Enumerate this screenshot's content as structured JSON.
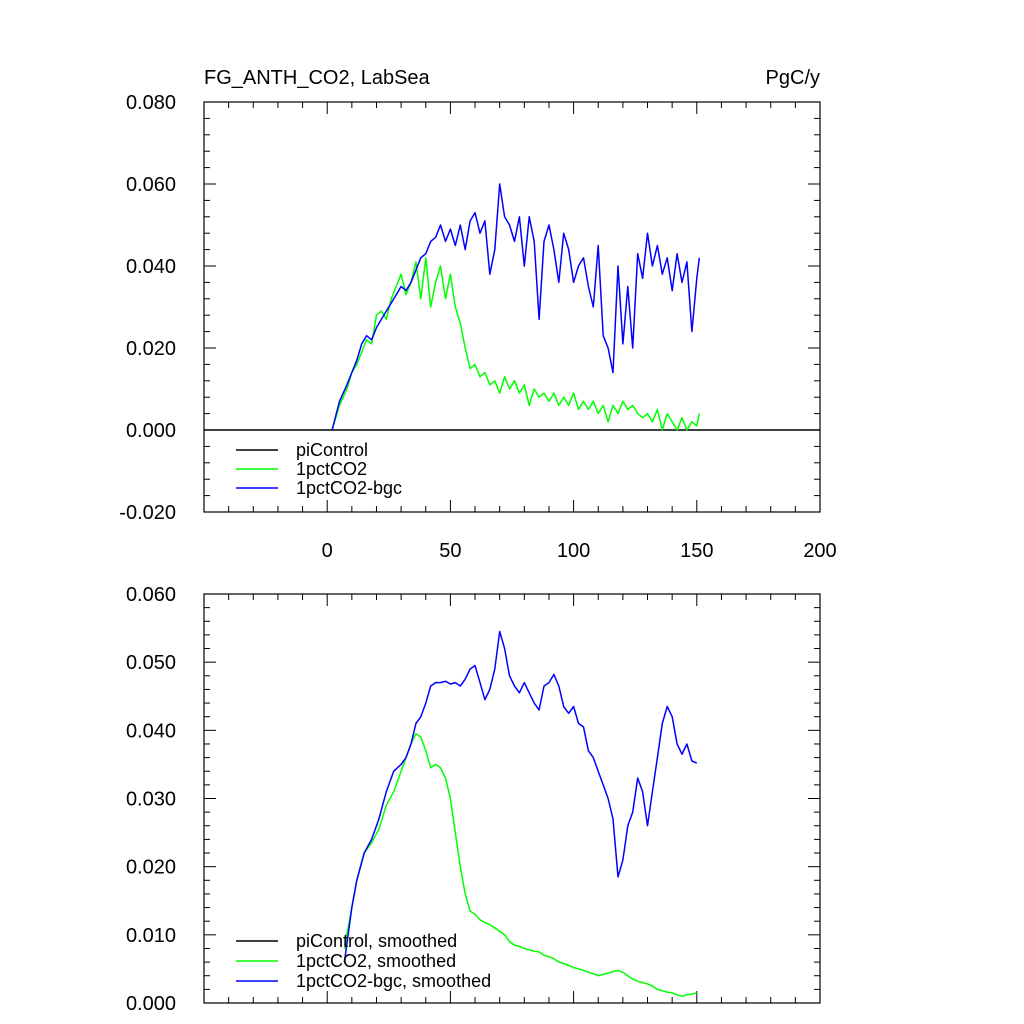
{
  "chart_data": [
    {
      "type": "line",
      "title": "FG_ANTH_CO2, LabSea",
      "units": "PgC/y",
      "xlim": [
        -50,
        200
      ],
      "ylim": [
        -0.02,
        0.08
      ],
      "xticks": [
        0,
        50,
        100,
        150,
        200
      ],
      "xtick_labels": [
        "0",
        "50",
        "100",
        "150",
        "200"
      ],
      "yticks": [
        -0.02,
        0,
        0.02,
        0.04,
        0.06,
        0.08
      ],
      "ytick_labels": [
        "-0.020",
        "0.000",
        "0.020",
        "0.040",
        "0.060",
        "0.080"
      ],
      "legend_position": "bottom-left",
      "series": [
        {
          "name": "piControl",
          "color": "#000000",
          "x": [
            -50,
            200
          ],
          "y": [
            0.0,
            0.0
          ]
        },
        {
          "name": "1pctCO2",
          "color": "#00ff00",
          "x": [
            2,
            5,
            8,
            10,
            12,
            14,
            16,
            18,
            20,
            22,
            24,
            26,
            28,
            30,
            32,
            34,
            36,
            38,
            40,
            42,
            44,
            46,
            48,
            50,
            52,
            54,
            56,
            58,
            60,
            62,
            64,
            66,
            68,
            70,
            72,
            74,
            76,
            78,
            80,
            82,
            84,
            86,
            88,
            90,
            92,
            94,
            96,
            98,
            100,
            102,
            104,
            106,
            108,
            110,
            112,
            114,
            116,
            118,
            120,
            122,
            124,
            126,
            128,
            130,
            132,
            134,
            136,
            138,
            140,
            142,
            144,
            146,
            148,
            150,
            151
          ],
          "y": [
            0.0,
            0.006,
            0.01,
            0.014,
            0.016,
            0.019,
            0.022,
            0.021,
            0.028,
            0.029,
            0.027,
            0.032,
            0.035,
            0.038,
            0.033,
            0.036,
            0.041,
            0.032,
            0.042,
            0.03,
            0.036,
            0.04,
            0.032,
            0.038,
            0.03,
            0.026,
            0.02,
            0.015,
            0.016,
            0.013,
            0.014,
            0.011,
            0.012,
            0.009,
            0.013,
            0.01,
            0.012,
            0.009,
            0.011,
            0.006,
            0.01,
            0.008,
            0.009,
            0.007,
            0.009,
            0.006,
            0.008,
            0.006,
            0.009,
            0.005,
            0.007,
            0.005,
            0.007,
            0.004,
            0.006,
            0.002,
            0.006,
            0.004,
            0.007,
            0.005,
            0.006,
            0.004,
            0.003,
            0.004,
            0.002,
            0.005,
            0.0,
            0.004,
            0.002,
            0.0,
            0.003,
            0.0,
            0.002,
            0.001,
            0.004
          ]
        },
        {
          "name": "1pctCO2-bgc",
          "color": "#0000ff",
          "x": [
            2,
            5,
            8,
            10,
            12,
            14,
            16,
            18,
            20,
            22,
            24,
            26,
            28,
            30,
            32,
            34,
            36,
            38,
            40,
            42,
            44,
            46,
            48,
            50,
            52,
            54,
            56,
            58,
            60,
            62,
            64,
            66,
            68,
            70,
            72,
            74,
            76,
            78,
            80,
            82,
            84,
            86,
            88,
            90,
            92,
            94,
            96,
            98,
            100,
            102,
            104,
            106,
            108,
            110,
            112,
            114,
            116,
            118,
            120,
            122,
            124,
            126,
            128,
            130,
            132,
            134,
            136,
            138,
            140,
            142,
            144,
            146,
            148,
            150,
            151
          ],
          "y": [
            0.0,
            0.007,
            0.011,
            0.014,
            0.017,
            0.021,
            0.023,
            0.022,
            0.025,
            0.027,
            0.029,
            0.031,
            0.033,
            0.035,
            0.034,
            0.036,
            0.039,
            0.042,
            0.043,
            0.046,
            0.047,
            0.05,
            0.046,
            0.049,
            0.045,
            0.05,
            0.044,
            0.051,
            0.053,
            0.048,
            0.051,
            0.038,
            0.044,
            0.06,
            0.052,
            0.05,
            0.046,
            0.052,
            0.04,
            0.052,
            0.046,
            0.027,
            0.046,
            0.05,
            0.044,
            0.036,
            0.048,
            0.044,
            0.036,
            0.04,
            0.042,
            0.035,
            0.03,
            0.045,
            0.023,
            0.02,
            0.014,
            0.04,
            0.021,
            0.035,
            0.02,
            0.043,
            0.037,
            0.048,
            0.04,
            0.045,
            0.038,
            0.042,
            0.034,
            0.043,
            0.036,
            0.041,
            0.024,
            0.037,
            0.042
          ]
        }
      ]
    },
    {
      "type": "line",
      "title": "",
      "xlim": [
        -50,
        200
      ],
      "ylim": [
        0,
        0.06
      ],
      "xticks": [
        0,
        50,
        100,
        150,
        200
      ],
      "yticks": [
        0,
        0.01,
        0.02,
        0.03,
        0.04,
        0.05,
        0.06
      ],
      "ytick_labels": [
        "0.000",
        "0.010",
        "0.020",
        "0.030",
        "0.040",
        "0.050",
        "0.060"
      ],
      "legend_position": "bottom-left",
      "series": [
        {
          "name": "piControl, smoothed",
          "color": "#000000",
          "x": [],
          "y": []
        },
        {
          "name": "1pctCO2, smoothed",
          "color": "#00ff00",
          "x": [
            7,
            10,
            12,
            15,
            18,
            21,
            24,
            27,
            30,
            32,
            34,
            36,
            38,
            40,
            42,
            44,
            46,
            48,
            50,
            52,
            54,
            56,
            58,
            60,
            62,
            64,
            66,
            68,
            70,
            72,
            74,
            76,
            78,
            80,
            82,
            84,
            86,
            88,
            90,
            92,
            94,
            96,
            98,
            100,
            102,
            104,
            106,
            108,
            110,
            112,
            114,
            116,
            118,
            120,
            122,
            124,
            126,
            128,
            130,
            132,
            134,
            136,
            138,
            140,
            142,
            144,
            146,
            148,
            150
          ],
          "y": [
            0.008,
            0.014,
            0.018,
            0.022,
            0.0235,
            0.0255,
            0.029,
            0.031,
            0.034,
            0.036,
            0.038,
            0.0395,
            0.039,
            0.037,
            0.0345,
            0.035,
            0.0345,
            0.033,
            0.03,
            0.025,
            0.02,
            0.016,
            0.0135,
            0.013,
            0.0122,
            0.0118,
            0.0115,
            0.011,
            0.0105,
            0.01,
            0.009,
            0.0085,
            0.0083,
            0.008,
            0.0078,
            0.0076,
            0.0075,
            0.007,
            0.0068,
            0.0065,
            0.006,
            0.0058,
            0.0055,
            0.0052,
            0.005,
            0.0048,
            0.0045,
            0.0043,
            0.004,
            0.0042,
            0.0044,
            0.0046,
            0.0048,
            0.0045,
            0.004,
            0.0035,
            0.0032,
            0.003,
            0.0028,
            0.0025,
            0.002,
            0.0018,
            0.0016,
            0.0015,
            0.0012,
            0.001,
            0.0012,
            0.0013,
            0.0015
          ]
        },
        {
          "name": "1pctCO2-bgc, smoothed",
          "color": "#0000ff",
          "x": [
            7,
            10,
            12,
            15,
            18,
            21,
            24,
            27,
            30,
            32,
            34,
            36,
            38,
            40,
            42,
            44,
            46,
            48,
            50,
            52,
            54,
            56,
            58,
            60,
            62,
            64,
            66,
            68,
            70,
            72,
            74,
            76,
            78,
            80,
            82,
            84,
            86,
            88,
            90,
            92,
            94,
            96,
            98,
            100,
            102,
            104,
            106,
            108,
            110,
            112,
            114,
            116,
            118,
            120,
            122,
            124,
            126,
            128,
            130,
            132,
            134,
            136,
            138,
            140,
            142,
            144,
            146,
            148,
            150
          ],
          "y": [
            0.006,
            0.014,
            0.018,
            0.022,
            0.024,
            0.027,
            0.031,
            0.034,
            0.035,
            0.036,
            0.038,
            0.041,
            0.042,
            0.044,
            0.0465,
            0.047,
            0.047,
            0.0472,
            0.0468,
            0.047,
            0.0465,
            0.0475,
            0.049,
            0.0495,
            0.047,
            0.0445,
            0.046,
            0.049,
            0.0545,
            0.052,
            0.048,
            0.0465,
            0.0455,
            0.047,
            0.0455,
            0.044,
            0.043,
            0.0465,
            0.047,
            0.0482,
            0.0465,
            0.0435,
            0.0425,
            0.0435,
            0.041,
            0.0405,
            0.037,
            0.036,
            0.034,
            0.032,
            0.03,
            0.027,
            0.0185,
            0.021,
            0.026,
            0.028,
            0.033,
            0.031,
            0.026,
            0.031,
            0.036,
            0.041,
            0.0435,
            0.042,
            0.038,
            0.0365,
            0.038,
            0.0355,
            0.0352
          ]
        }
      ]
    }
  ]
}
